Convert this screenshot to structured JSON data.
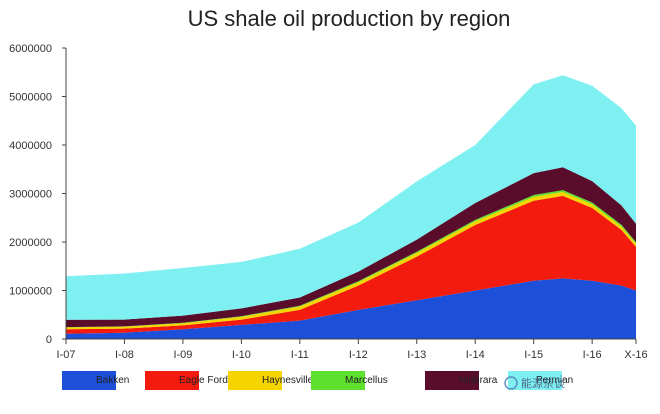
{
  "chart_data": {
    "type": "area",
    "stacked": true,
    "title": "US shale oil production by region",
    "xlabel": "",
    "ylabel": "",
    "ylim": [
      0,
      6000000
    ],
    "y_ticks": [
      "0",
      "1000000",
      "2000000",
      "3000000",
      "4000000",
      "5000000",
      "6000000"
    ],
    "x_ticks": [
      {
        "label": "I-07",
        "t": 0
      },
      {
        "label": "I-08",
        "t": 12
      },
      {
        "label": "I-09",
        "t": 24
      },
      {
        "label": "I-10",
        "t": 36
      },
      {
        "label": "I-11",
        "t": 48
      },
      {
        "label": "I-12",
        "t": 60
      },
      {
        "label": "I-13",
        "t": 72
      },
      {
        "label": "I-14",
        "t": 84
      },
      {
        "label": "I-15",
        "t": 96
      },
      {
        "label": "I-16",
        "t": 108
      },
      {
        "label": "X-16",
        "t": 117
      }
    ],
    "x": [
      0,
      12,
      24,
      36,
      48,
      60,
      72,
      84,
      96,
      102,
      108,
      114,
      117
    ],
    "series": [
      {
        "name": "Bakken",
        "color": "#1e4fd8",
        "values": [
          110000,
          130000,
          200000,
          290000,
          380000,
          600000,
          800000,
          1000000,
          1200000,
          1250000,
          1200000,
          1100000,
          1000000
        ]
      },
      {
        "name": "Eagle Ford",
        "color": "#f21b0e",
        "values": [
          90000,
          85000,
          80000,
          110000,
          220000,
          500000,
          900000,
          1350000,
          1650000,
          1700000,
          1500000,
          1150000,
          900000
        ]
      },
      {
        "name": "Haynesville",
        "color": "#f5d400",
        "values": [
          40000,
          40000,
          45000,
          60000,
          70000,
          70000,
          75000,
          75000,
          80000,
          80000,
          75000,
          70000,
          65000
        ]
      },
      {
        "name": "Marcellus",
        "color": "#5ee02e",
        "values": [
          5000,
          5000,
          8000,
          10000,
          15000,
          20000,
          25000,
          30000,
          40000,
          40000,
          40000,
          35000,
          30000
        ]
      },
      {
        "name": "Niobrara",
        "color": "#5a0d2b",
        "values": [
          150000,
          140000,
          150000,
          160000,
          170000,
          200000,
          250000,
          350000,
          450000,
          470000,
          440000,
          400000,
          380000
        ]
      },
      {
        "name": "Permian",
        "color": "#7ff0f2",
        "values": [
          900000,
          950000,
          980000,
          960000,
          1005000,
          1010000,
          1200000,
          1195000,
          1830000,
          1900000,
          1965000,
          2005000,
          2025000
        ]
      }
    ]
  },
  "legend": [
    {
      "label": "Bakken",
      "color": "#1e4fd8"
    },
    {
      "label": "Eagle Ford",
      "color": "#f21b0e"
    },
    {
      "label": "Haynesville",
      "color": "#f5d400"
    },
    {
      "label": "Marcellus",
      "color": "#5ee02e"
    },
    {
      "label": "Niobrara",
      "color": "#5a0d2b"
    },
    {
      "label": "Permian",
      "color": "#7ff0f2"
    }
  ],
  "watermark": "能源杂谈"
}
